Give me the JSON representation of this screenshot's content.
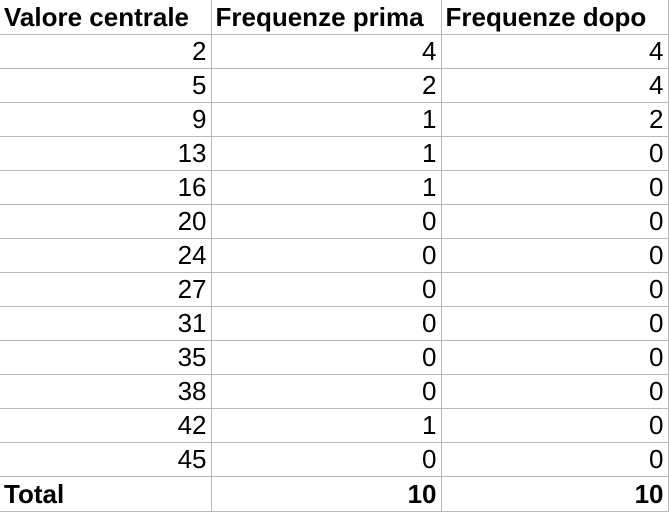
{
  "table": {
    "headers": [
      "Valore centrale",
      "Frequenze prima",
      "Frequenze dopo"
    ],
    "rows": [
      [
        "2",
        "4",
        "4"
      ],
      [
        "5",
        "2",
        "4"
      ],
      [
        "9",
        "1",
        "2"
      ],
      [
        "13",
        "1",
        "0"
      ],
      [
        "16",
        "1",
        "0"
      ],
      [
        "20",
        "0",
        "0"
      ],
      [
        "24",
        "0",
        "0"
      ],
      [
        "27",
        "0",
        "0"
      ],
      [
        "31",
        "0",
        "0"
      ],
      [
        "35",
        "0",
        "0"
      ],
      [
        "38",
        "0",
        "0"
      ],
      [
        "42",
        "1",
        "0"
      ],
      [
        "45",
        "0",
        "0"
      ]
    ],
    "total": {
      "label": "Total",
      "prima": "10",
      "dopo": "10"
    }
  }
}
